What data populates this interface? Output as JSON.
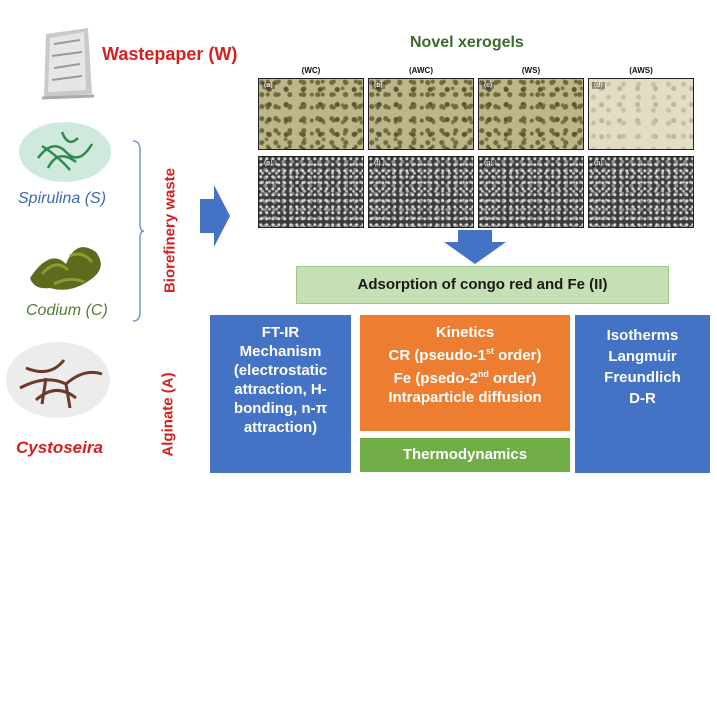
{
  "inputs": {
    "wastepaper": "Wastepaper (W)",
    "spirulina": "Spirulina (S)",
    "codium": "Codium (C)",
    "cystoseira": "Cystoseira",
    "biorefinery_waste": "Biorefinery waste",
    "alginate": "Alginate (A)"
  },
  "xerogels": {
    "title": "Novel xerogels",
    "columns": [
      "(WC)",
      "(AWC)",
      "(WS)",
      "(AWS)"
    ],
    "optical_tags": [
      "(a)",
      "(b)",
      "(c)",
      "(d)"
    ],
    "sem_tags": [
      "(e)",
      "(f)",
      "(g)",
      "(h)"
    ]
  },
  "adsorption_title": "Adsorption of congo red and Fe (II)",
  "ftir": {
    "lines": [
      "FT-IR",
      "Mechanism",
      "(electrostatic",
      "attraction, H-",
      "bonding, n-π",
      "attraction)"
    ]
  },
  "kinetics": {
    "title": "Kinetics",
    "cr": "CR (pseudo-1",
    "cr_sup": "st",
    "cr_end": " order)",
    "fe": "Fe (psedo-2",
    "fe_sup": "nd",
    "fe_end": " order)",
    "intra": "Intraparticle diffusion"
  },
  "thermodynamics": "Thermodynamics",
  "isotherms": {
    "lines": [
      "Isotherms",
      "Langmuir",
      "Freundlich",
      "D-R"
    ]
  },
  "colors": {
    "blue": "#4472c4",
    "orange": "#ed7d31",
    "green": "#70ad47",
    "light_green": "#c5e0b4",
    "red": "#d6201f"
  }
}
